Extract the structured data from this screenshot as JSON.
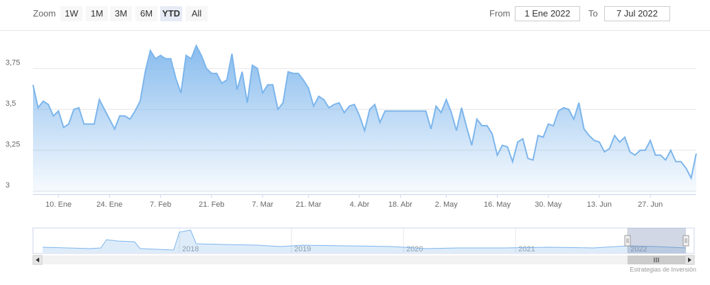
{
  "range_selector": {
    "zoom_label": "Zoom",
    "buttons": [
      "1W",
      "1M",
      "3M",
      "6M",
      "YTD",
      "All"
    ],
    "selected": "YTD",
    "from_label": "From",
    "from": "1 Ene 2022",
    "to_label": "To",
    "to": "7 Jul 2022"
  },
  "credits": "Estrategias de Inversión",
  "chart_data": [
    {
      "type": "area",
      "color": "#7cb5ec",
      "grid": true,
      "categories": [
        null,
        null,
        null,
        null,
        null,
        "10. Ene",
        null,
        null,
        null,
        null,
        null,
        null,
        null,
        null,
        null,
        "24. Ene",
        null,
        null,
        null,
        null,
        null,
        null,
        null,
        null,
        null,
        "7. Feb",
        null,
        null,
        null,
        null,
        null,
        null,
        null,
        null,
        null,
        "21. Feb",
        null,
        null,
        null,
        null,
        null,
        null,
        null,
        null,
        null,
        "7. Mar",
        null,
        null,
        null,
        null,
        null,
        null,
        null,
        null,
        "21. Mar",
        null,
        null,
        null,
        null,
        null,
        null,
        null,
        null,
        null,
        "4. Abr",
        null,
        null,
        null,
        null,
        null,
        null,
        null,
        "18. Abr",
        null,
        null,
        null,
        null,
        null,
        null,
        null,
        null,
        "2. May",
        null,
        null,
        null,
        null,
        null,
        null,
        null,
        null,
        null,
        "16. May",
        null,
        null,
        null,
        null,
        null,
        null,
        null,
        null,
        null,
        "30. May",
        null,
        null,
        null,
        null,
        null,
        null,
        null,
        null,
        null,
        "13. Jun",
        null,
        null,
        null,
        null,
        null,
        null,
        null,
        null,
        null,
        "27. Jun",
        null,
        null,
        null,
        null,
        null,
        null,
        null,
        null,
        null
      ],
      "values": [
        3.65,
        3.51,
        3.55,
        3.53,
        3.46,
        3.49,
        3.39,
        3.41,
        3.5,
        3.51,
        3.41,
        3.41,
        3.41,
        3.56,
        3.5,
        3.44,
        3.38,
        3.46,
        3.46,
        3.44,
        3.49,
        3.55,
        3.73,
        3.86,
        3.81,
        3.83,
        3.81,
        3.81,
        3.69,
        3.6,
        3.83,
        3.81,
        3.89,
        3.83,
        3.75,
        3.72,
        3.72,
        3.66,
        3.68,
        3.84,
        3.62,
        3.73,
        3.54,
        3.77,
        3.75,
        3.6,
        3.65,
        3.65,
        3.5,
        3.54,
        3.73,
        3.72,
        3.72,
        3.68,
        3.63,
        3.52,
        3.58,
        3.56,
        3.51,
        3.53,
        3.54,
        3.48,
        3.52,
        3.53,
        3.46,
        3.37,
        3.5,
        3.53,
        3.42,
        3.49,
        3.49,
        3.49,
        3.49,
        3.49,
        3.49,
        3.49,
        3.49,
        3.49,
        3.38,
        3.52,
        3.48,
        3.56,
        3.48,
        3.37,
        3.51,
        3.39,
        3.28,
        3.44,
        3.4,
        3.4,
        3.35,
        3.22,
        3.28,
        3.27,
        3.18,
        3.3,
        3.32,
        3.2,
        3.19,
        3.34,
        3.33,
        3.41,
        3.4,
        3.49,
        3.51,
        3.5,
        3.44,
        3.54,
        3.38,
        3.34,
        3.31,
        3.3,
        3.24,
        3.26,
        3.34,
        3.3,
        3.33,
        3.24,
        3.22,
        3.25,
        3.25,
        3.31,
        3.22,
        3.22,
        3.19,
        3.25,
        3.18,
        3.18,
        3.14,
        3.08,
        3.23
      ],
      "ylim": [
        2.98,
        3.98
      ],
      "yticks": [
        {
          "value": 3,
          "label": "3"
        },
        {
          "value": 3.25,
          "label": "3,25"
        },
        {
          "value": 3.5,
          "label": "3,5"
        },
        {
          "value": 3.75,
          "label": "3,75"
        }
      ]
    },
    {
      "type": "navigator",
      "color": "#7cb5ec",
      "x": [
        2016.78,
        2017.0,
        2017.2,
        2017.3,
        2017.35,
        2017.45,
        2017.6,
        2017.65,
        2017.8,
        2017.95,
        2018.0,
        2018.1,
        2018.15,
        2018.4,
        2018.7,
        2018.9,
        2019.1,
        2019.5,
        2019.9,
        2020.2,
        2020.5,
        2020.9,
        2021.3,
        2021.7,
        2022.0,
        2022.25,
        2022.52
      ],
      "values": [
        2.8,
        2.7,
        2.6,
        2.7,
        3.9,
        3.7,
        3.6,
        2.6,
        2.5,
        2.4,
        5.0,
        5.3,
        3.3,
        3.2,
        3.1,
        2.9,
        3.1,
        3.0,
        2.9,
        2.6,
        2.7,
        2.7,
        2.8,
        2.7,
        3.0,
        2.9,
        2.7
      ],
      "xlim": [
        2016.78,
        2022.52
      ],
      "xticks": [
        2018,
        2019,
        2020,
        2021,
        2022
      ],
      "ylim": [
        2,
        5.5
      ]
    }
  ]
}
